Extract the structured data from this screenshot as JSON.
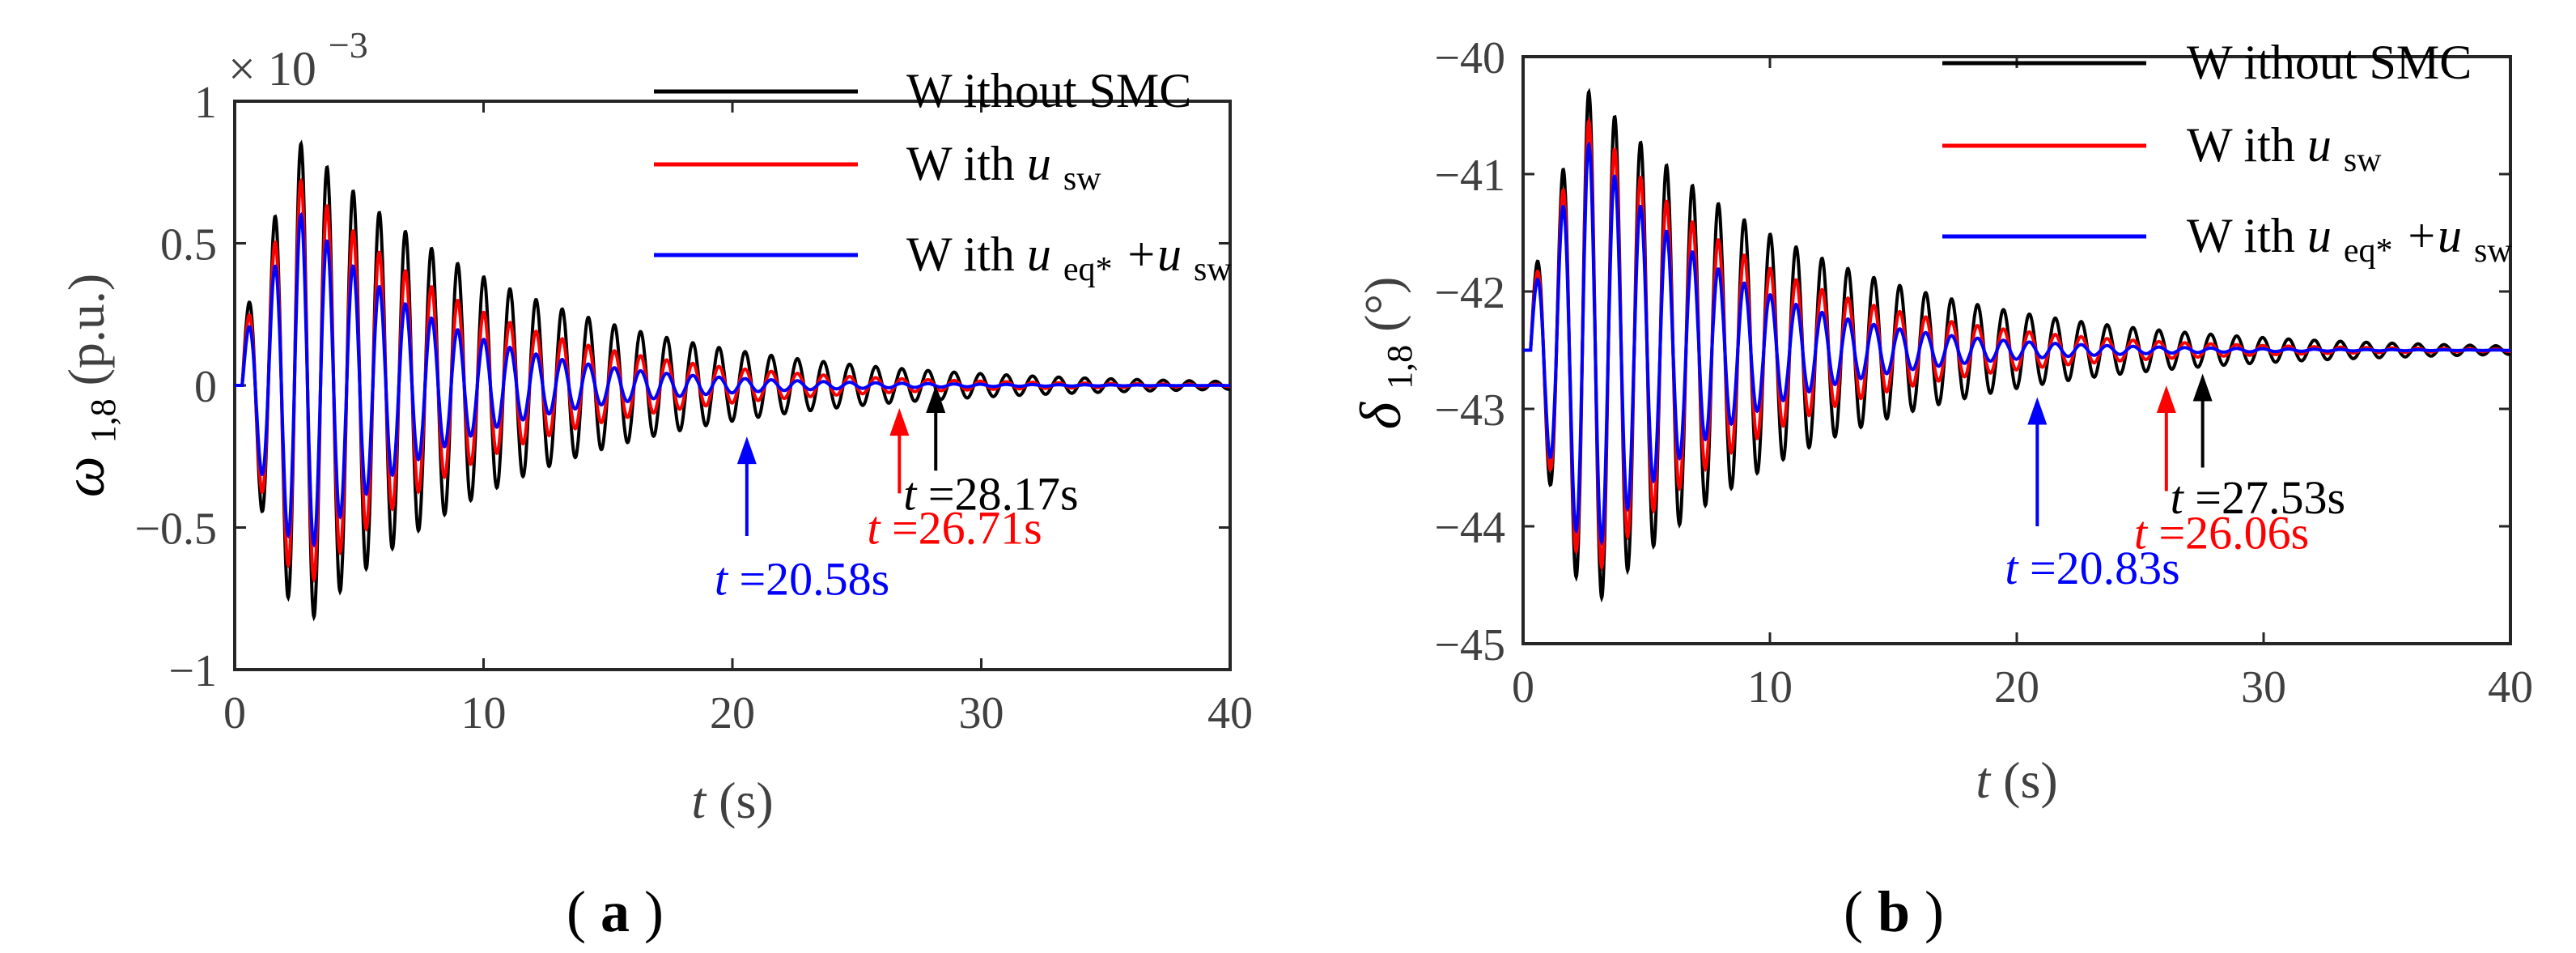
{
  "figure": {
    "panels": [
      "a",
      "b"
    ]
  },
  "chart_data": [
    {
      "panel": "(a)",
      "panel_letter": "a",
      "type": "line",
      "title": "",
      "xlabel_var": "t",
      "xlabel_unit": "(s)",
      "ylabel_sym": "ω",
      "ylabel_sub": "1,8",
      "ylabel_unit": "(p.u.)",
      "multiplier_prefix": "× 10",
      "multiplier_exp": "−3",
      "xlim": [
        0,
        40
      ],
      "ylim": [
        -1,
        1
      ],
      "xticks": [
        0,
        10,
        20,
        30,
        40
      ],
      "xtick_labels": [
        "0",
        "10",
        "20",
        "30",
        "40"
      ],
      "yticks": [
        1,
        0.5,
        0,
        -0.5,
        -1
      ],
      "ytick_labels": [
        "1",
        "0.5",
        "0",
        "−0.5",
        "−1"
      ],
      "signal": {
        "step_time": 0.3,
        "initial": 0,
        "final": 0,
        "period": 1.05
      },
      "series": [
        {
          "name": "Without SMC",
          "color": "#000000",
          "amplitude": 0.85,
          "settling_time": 28.17,
          "decay_tau": 9.0
        },
        {
          "name": "With u_sw",
          "color": "#ff0000",
          "amplitude": 0.72,
          "settling_time": 26.71,
          "decay_tau": 7.0
        },
        {
          "name": "With u_eq*+u_sw",
          "color": "#0000ff",
          "amplitude": 0.6,
          "settling_time": 20.58,
          "decay_tau": 5.5
        }
      ],
      "legend": {
        "position": "top-right",
        "entries": [
          {
            "prefix": "W ithout SMC",
            "sym": "",
            "sub": "",
            "sym2": "",
            "sub2": "",
            "color": "#000000"
          },
          {
            "prefix": "W ith ",
            "sym": "u",
            "sub": "sw",
            "sym2": "",
            "sub2": "",
            "color": "#ff0000"
          },
          {
            "prefix": "W ith ",
            "sym": "u",
            "sub": "eq*",
            "sym2": "+u",
            "sub2": "sw",
            "color": "#0000ff"
          }
        ]
      },
      "annotations": [
        {
          "var": "t",
          "text": " =28.17s",
          "color": "#000000",
          "x": 28.17,
          "arrow_tip_y": 0.0,
          "arrow_tail_y": -0.3,
          "label_y": -0.38
        },
        {
          "var": "t",
          "text": " =26.71s",
          "color": "#ff0000",
          "x": 26.71,
          "arrow_tip_y": -0.08,
          "arrow_tail_y": -0.38,
          "label_y": -0.5
        },
        {
          "var": "t",
          "text": " =20.58s",
          "color": "#0000ff",
          "x": 20.58,
          "arrow_tip_y": -0.18,
          "arrow_tail_y": -0.53,
          "label_y": -0.68
        }
      ]
    },
    {
      "panel": "(b)",
      "panel_letter": "b",
      "type": "line",
      "title": "",
      "xlabel_var": "t",
      "xlabel_unit": "(s)",
      "ylabel_sym": "δ",
      "ylabel_sub": "1,8",
      "ylabel_unit": "(°)",
      "multiplier_prefix": "",
      "multiplier_exp": "",
      "xlim": [
        0,
        40
      ],
      "ylim": [
        -45,
        -40
      ],
      "xticks": [
        0,
        10,
        20,
        30,
        40
      ],
      "xtick_labels": [
        "0",
        "10",
        "20",
        "30",
        "40"
      ],
      "yticks": [
        -40,
        -41,
        -42,
        -43,
        -44,
        -45
      ],
      "ytick_labels": [
        "−40",
        "−41",
        "−42",
        "−43",
        "−44",
        "−45"
      ],
      "signal": {
        "step_time": 0.3,
        "initial": -42.5,
        "final": -42.5,
        "period": 1.05
      },
      "series": [
        {
          "name": "Without SMC",
          "color": "#000000",
          "amplitude": 2.2,
          "settling_time": 27.53,
          "decay_tau": 9.0
        },
        {
          "name": "With u_sw",
          "color": "#ff0000",
          "amplitude": 1.95,
          "settling_time": 26.06,
          "decay_tau": 7.0
        },
        {
          "name": "With u_eq*+u_sw",
          "color": "#0000ff",
          "amplitude": 1.75,
          "settling_time": 20.83,
          "decay_tau": 5.5
        }
      ],
      "legend": {
        "position": "top-right",
        "entries": [
          {
            "prefix": "W ithout SMC",
            "sym": "",
            "sub": "",
            "sym2": "",
            "sub2": "",
            "color": "#000000"
          },
          {
            "prefix": "W ith ",
            "sym": "u",
            "sub": "sw",
            "sym2": "",
            "sub2": "",
            "color": "#ff0000"
          },
          {
            "prefix": "W ith ",
            "sym": "u",
            "sub": "eq*",
            "sym2": "+u",
            "sub2": "sw",
            "color": "#0000ff"
          }
        ]
      },
      "annotations": [
        {
          "var": "t",
          "text": " =27.53s",
          "color": "#000000",
          "x": 27.53,
          "arrow_tip_y": -42.7,
          "arrow_tail_y": -43.5,
          "label_y": -43.75
        },
        {
          "var": "t",
          "text": " =26.06s",
          "color": "#ff0000",
          "x": 26.06,
          "arrow_tip_y": -42.8,
          "arrow_tail_y": -43.7,
          "label_y": -44.05
        },
        {
          "var": "t",
          "text": " =20.83s",
          "color": "#0000ff",
          "x": 20.83,
          "arrow_tip_y": -42.9,
          "arrow_tail_y": -44.0,
          "label_y": -44.35
        }
      ]
    }
  ]
}
